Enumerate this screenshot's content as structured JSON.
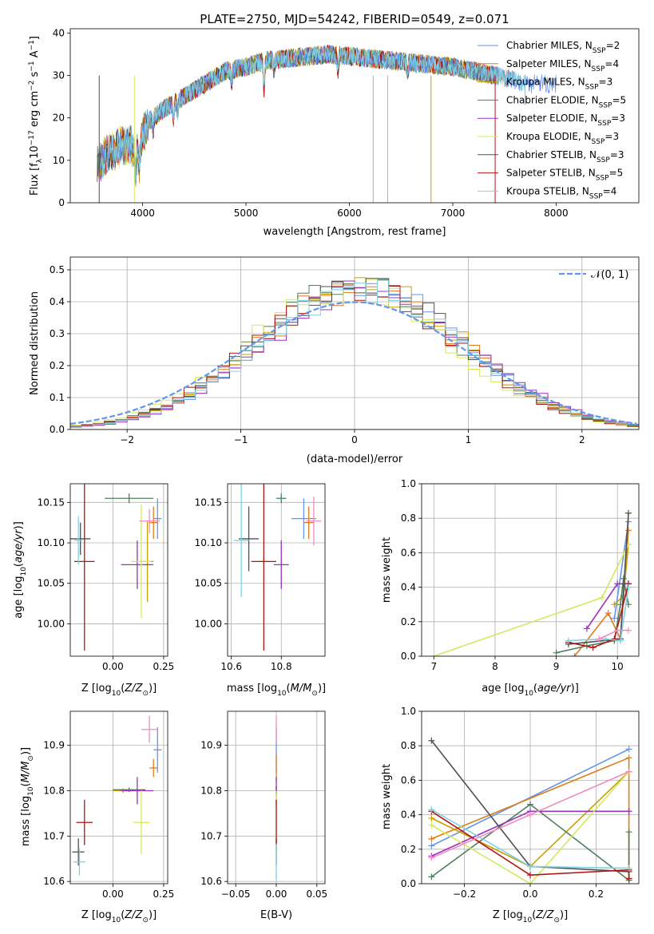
{
  "colors": {
    "chabrier_miles": "#6495ed",
    "salpeter_miles": "#e07b1a",
    "kroupa_miles": "#c8a000",
    "chabrier_elodie": "#4f7f5f",
    "salpeter_elodie": "#9b30c0",
    "kroupa_elodie": "#d4e85c",
    "chabrier_stelib": "#505050",
    "salpeter_stelib": "#b01515",
    "kroupa_stelib": "#80d0e0",
    "pink_extra": "#f08cc0",
    "normal_curve": "#6495ed",
    "grid": "#b0b0b0"
  },
  "legend_labels": [
    "Chabrier MILES, N_SSP=2",
    "Salpeter MILES, N_SSP=4",
    "Kroupa MILES, N_SSP=3",
    "Chabrier ELODIE, N_SSP=5",
    "Salpeter ELODIE, N_SSP=3",
    "Kroupa ELODIE, N_SSP=3",
    "Chabrier STELIB, N_SSP=3",
    "Salpeter STELIB, N_SSP=5",
    "Kroupa STELIB, N_SSP=4"
  ],
  "chart_data": [
    {
      "id": "spectrum",
      "type": "line",
      "title": "PLATE=2750, MJD=54242, FIBERID=0549, z=0.071",
      "xlabel": "wavelength [Angstrom, rest frame]",
      "ylabel": "Flux [f_λ 10^-17 erg cm^-2 s^-1 A^-1]",
      "xlim": [
        3300,
        8800
      ],
      "ylim": [
        0,
        41
      ],
      "xticks": [
        4000,
        5000,
        6000,
        7000,
        8000
      ],
      "yticks": [
        0,
        10,
        20,
        30,
        40
      ],
      "continuum_x": [
        3550,
        3700,
        3850,
        3950,
        4050,
        4200,
        4400,
        4600,
        4800,
        5000,
        5200,
        5400,
        5600,
        5800,
        6000,
        6200,
        6400,
        6600,
        6800,
        7000,
        7200,
        7400,
        7600,
        7700
      ],
      "continuum_y": [
        9,
        12,
        14,
        12,
        19,
        22,
        25,
        28,
        31,
        32,
        33.5,
        34,
        34.5,
        35,
        34.5,
        34,
        33.5,
        33,
        32.5,
        32,
        31,
        30,
        29,
        28
      ]
    },
    {
      "id": "residuals",
      "type": "histogram",
      "xlabel": "(data-model)/error",
      "ylabel": "Normed distribution",
      "xlim": [
        -2.5,
        2.5
      ],
      "ylim": [
        0,
        0.54
      ],
      "xticks": [
        -2,
        -1,
        0,
        1,
        2
      ],
      "yticks": [
        0.0,
        0.1,
        0.2,
        0.3,
        0.4,
        0.5
      ],
      "legend_label": "𝒩(0, 1)"
    },
    {
      "id": "age_vs_Z",
      "type": "scatter",
      "xlabel": "Z [log10(Z/Z⊙)]",
      "ylabel": "age [log10(age/yr)]",
      "xlim": [
        -0.21,
        0.27
      ],
      "ylim": [
        9.96,
        10.173
      ],
      "xticks": [
        0.0,
        0.25
      ],
      "yticks": [
        10.0,
        10.05,
        10.1,
        10.15
      ],
      "points": [
        {
          "x": 0.22,
          "y": 10.13,
          "xerr": 0.02,
          "yerr": 0.025,
          "c": "chabrier_miles"
        },
        {
          "x": 0.2,
          "y": 10.125,
          "xerr": 0.02,
          "yerr": 0.02,
          "c": "salpeter_miles"
        },
        {
          "x": 0.17,
          "y": 10.077,
          "xerr": 0.03,
          "yerr": 0.05,
          "c": "kroupa_miles"
        },
        {
          "x": 0.08,
          "y": 10.155,
          "xerr": 0.12,
          "yerr": 0.006,
          "c": "chabrier_elodie"
        },
        {
          "x": 0.12,
          "y": 10.073,
          "xerr": 0.08,
          "yerr": 0.03,
          "c": "salpeter_elodie"
        },
        {
          "x": 0.14,
          "y": 10.077,
          "xerr": 0.05,
          "yerr": 0.07,
          "c": "kroupa_elodie"
        },
        {
          "x": -0.16,
          "y": 10.105,
          "xerr": 0.05,
          "yerr": 0.02,
          "c": "chabrier_stelib"
        },
        {
          "x": -0.14,
          "y": 10.077,
          "xerr": 0.05,
          "yerr": 0.11,
          "c": "salpeter_stelib"
        },
        {
          "x": -0.17,
          "y": 10.103,
          "xerr": 0.02,
          "yerr": 0.03,
          "c": "kroupa_stelib"
        },
        {
          "x": 0.18,
          "y": 10.127,
          "xerr": 0.05,
          "yerr": 0.015,
          "c": "pink_extra"
        }
      ]
    },
    {
      "id": "age_vs_mass",
      "type": "scatter",
      "xlabel": "mass [log10(M/M⊙)]",
      "ylabel": "",
      "xlim": [
        10.585,
        10.975
      ],
      "ylim": [
        9.96,
        10.173
      ],
      "xticks": [
        10.6,
        10.8
      ],
      "yticks": [
        10.0,
        10.05,
        10.1,
        10.15
      ],
      "points": [
        {
          "x": 10.89,
          "y": 10.13,
          "xerr": 0.05,
          "yerr": 0.025,
          "c": "chabrier_miles"
        },
        {
          "x": 10.91,
          "y": 10.125,
          "xerr": 0.02,
          "yerr": 0.02,
          "c": "salpeter_miles"
        },
        {
          "x": 10.73,
          "y": 10.077,
          "xerr": 0.02,
          "yerr": 0.005,
          "c": "kroupa_miles"
        },
        {
          "x": 10.8,
          "y": 10.155,
          "xerr": 0.02,
          "yerr": 0.006,
          "c": "chabrier_elodie"
        },
        {
          "x": 10.8,
          "y": 10.073,
          "xerr": 0.03,
          "yerr": 0.03,
          "c": "salpeter_elodie"
        },
        {
          "x": 10.73,
          "y": 10.077,
          "xerr": 0.02,
          "yerr": 0.005,
          "c": "kroupa_elodie"
        },
        {
          "x": 10.67,
          "y": 10.105,
          "xerr": 0.04,
          "yerr": 0.04,
          "c": "chabrier_stelib"
        },
        {
          "x": 10.73,
          "y": 10.077,
          "xerr": 0.05,
          "yerr": 0.11,
          "c": "salpeter_stelib"
        },
        {
          "x": 10.64,
          "y": 10.103,
          "xerr": 0.03,
          "yerr": 0.07,
          "c": "kroupa_stelib"
        },
        {
          "x": 10.93,
          "y": 10.127,
          "xerr": 0.03,
          "yerr": 0.03,
          "c": "pink_extra"
        }
      ]
    },
    {
      "id": "mass_weight_vs_age",
      "type": "line",
      "xlabel": "age log10(age/yr)",
      "ylabel": "mass weight",
      "xlim": [
        6.8,
        10.35
      ],
      "ylim": [
        0,
        1.0
      ],
      "xticks": [
        7,
        8,
        9,
        10
      ],
      "yticks": [
        0.0,
        0.2,
        0.4,
        0.6,
        0.8,
        1.0
      ],
      "series": [
        {
          "c": "chabrier_miles",
          "x": [
            9.95,
            10.18
          ],
          "y": [
            0.22,
            0.78
          ]
        },
        {
          "c": "salpeter_miles",
          "x": [
            9.3,
            9.85,
            10.05,
            10.18
          ],
          "y": [
            0.0,
            0.25,
            0.1,
            0.73
          ]
        },
        {
          "c": "kroupa_miles",
          "x": [
            9.95,
            10.1,
            10.18
          ],
          "y": [
            0.3,
            0.35,
            0.65
          ]
        },
        {
          "c": "chabrier_elodie",
          "x": [
            9.0,
            9.5,
            9.95,
            10.05,
            10.1,
            10.18
          ],
          "y": [
            0.02,
            0.06,
            0.09,
            0.3,
            0.45,
            0.3
          ]
        },
        {
          "c": "salpeter_elodie",
          "x": [
            9.5,
            10.0,
            10.18
          ],
          "y": [
            0.16,
            0.42,
            0.42
          ]
        },
        {
          "c": "kroupa_elodie",
          "x": [
            7.0,
            9.75,
            10.18
          ],
          "y": [
            0.0,
            0.34,
            0.65
          ]
        },
        {
          "c": "chabrier_stelib",
          "x": [
            9.2,
            10.05,
            10.18
          ],
          "y": [
            0.07,
            0.1,
            0.83
          ]
        },
        {
          "c": "salpeter_stelib",
          "x": [
            9.2,
            9.6,
            9.95,
            10.18
          ],
          "y": [
            0.08,
            0.05,
            0.1,
            0.42
          ]
        },
        {
          "c": "kroupa_stelib",
          "x": [
            9.2,
            9.8,
            10.05,
            10.18
          ],
          "y": [
            0.09,
            0.1,
            0.09,
            0.4
          ]
        },
        {
          "c": "pink_extra",
          "x": [
            9.7,
            10.0,
            10.18
          ],
          "y": [
            0.1,
            0.15,
            0.15
          ]
        }
      ]
    },
    {
      "id": "mass_vs_Z",
      "type": "scatter",
      "xlabel": "Z [log10(Z/Z⊙)]",
      "ylabel": "mass [log10(M/M⊙)]",
      "xlim": [
        -0.21,
        0.27
      ],
      "ylim": [
        10.595,
        10.975
      ],
      "xticks": [
        0.0,
        0.25
      ],
      "yticks": [
        10.6,
        10.7,
        10.8,
        10.9
      ],
      "points": [
        {
          "x": 0.22,
          "y": 10.89,
          "xerr": 0.02,
          "yerr": 0.05,
          "c": "chabrier_miles"
        },
        {
          "x": 0.2,
          "y": 10.85,
          "xerr": 0.02,
          "yerr": 0.02,
          "c": "salpeter_miles"
        },
        {
          "x": 0.05,
          "y": 10.8,
          "xerr": 0.05,
          "yerr": 0.005,
          "c": "kroupa_miles"
        },
        {
          "x": 0.08,
          "y": 10.802,
          "xerr": 0.08,
          "yerr": 0.005,
          "c": "chabrier_elodie"
        },
        {
          "x": 0.12,
          "y": 10.8,
          "xerr": 0.08,
          "yerr": 0.03,
          "c": "salpeter_elodie"
        },
        {
          "x": 0.14,
          "y": 10.73,
          "xerr": 0.04,
          "yerr": 0.07,
          "c": "kroupa_elodie"
        },
        {
          "x": -0.17,
          "y": 10.665,
          "xerr": 0.03,
          "yerr": 0.03,
          "c": "chabrier_stelib"
        },
        {
          "x": -0.14,
          "y": 10.73,
          "xerr": 0.04,
          "yerr": 0.05,
          "c": "salpeter_stelib"
        },
        {
          "x": -0.165,
          "y": 10.643,
          "xerr": 0.03,
          "yerr": 0.03,
          "c": "kroupa_stelib"
        },
        {
          "x": 0.18,
          "y": 10.935,
          "xerr": 0.04,
          "yerr": 0.03,
          "c": "pink_extra"
        }
      ]
    },
    {
      "id": "mass_vs_ebv",
      "type": "scatter",
      "xlabel": "E(B-V)",
      "ylabel": "",
      "xlim": [
        -0.06,
        0.06
      ],
      "ylim": [
        10.595,
        10.975
      ],
      "xticks": [
        -0.05,
        0.0,
        0.05
      ],
      "yticks": [
        10.6,
        10.7,
        10.8,
        10.9
      ],
      "points": [
        {
          "x": 0.0,
          "y": 10.89,
          "xerr": 0.0,
          "yerr": 0.05,
          "c": "chabrier_miles"
        },
        {
          "x": 0.0,
          "y": 10.85,
          "xerr": 0.0,
          "yerr": 0.03,
          "c": "salpeter_miles"
        },
        {
          "x": 0.0,
          "y": 10.8,
          "xerr": 0.0,
          "yerr": 0.01,
          "c": "kroupa_miles"
        },
        {
          "x": 0.0,
          "y": 10.8,
          "xerr": 0.0,
          "yerr": 0.01,
          "c": "chabrier_elodie"
        },
        {
          "x": 0.0,
          "y": 10.8,
          "xerr": 0.0,
          "yerr": 0.03,
          "c": "salpeter_elodie"
        },
        {
          "x": 0.0,
          "y": 10.73,
          "xerr": 0.0,
          "yerr": 0.07,
          "c": "kroupa_elodie"
        },
        {
          "x": 0.0,
          "y": 10.665,
          "xerr": 0.0,
          "yerr": 0.03,
          "c": "chabrier_stelib"
        },
        {
          "x": 0.0,
          "y": 10.73,
          "xerr": 0.0,
          "yerr": 0.05,
          "c": "salpeter_stelib"
        },
        {
          "x": 0.0,
          "y": 10.643,
          "xerr": 0.0,
          "yerr": 0.04,
          "c": "kroupa_stelib"
        },
        {
          "x": 0.0,
          "y": 10.935,
          "xerr": 0.0,
          "yerr": 0.03,
          "c": "pink_extra"
        }
      ]
    },
    {
      "id": "mass_weight_vs_Z",
      "type": "line",
      "xlabel": "Z [log10(Z/Z⊙)]",
      "ylabel": "mass weight",
      "xlim": [
        -0.33,
        0.33
      ],
      "ylim": [
        0,
        1.0
      ],
      "xticks": [
        -0.2,
        0.0,
        0.2
      ],
      "yticks": [
        0.0,
        0.2,
        0.4,
        0.6,
        0.8,
        1.0
      ],
      "series": [
        {
          "c": "chabrier_miles",
          "x": [
            -0.3,
            0.3
          ],
          "y": [
            0.22,
            0.78
          ]
        },
        {
          "c": "salpeter_miles",
          "x": [
            -0.3,
            0.3,
            0.3
          ],
          "y": [
            0.26,
            0.73,
            0.02
          ]
        },
        {
          "c": "kroupa_miles",
          "x": [
            -0.3,
            0.0,
            0.3
          ],
          "y": [
            0.38,
            0.1,
            0.65
          ]
        },
        {
          "c": "chabrier_elodie",
          "x": [
            -0.3,
            0.0,
            0.3,
            0.3
          ],
          "y": [
            0.04,
            0.46,
            0.02,
            0.3
          ]
        },
        {
          "c": "salpeter_elodie",
          "x": [
            -0.3,
            0.0,
            0.3
          ],
          "y": [
            0.16,
            0.42,
            0.42
          ]
        },
        {
          "c": "kroupa_elodie",
          "x": [
            -0.3,
            0.0,
            0.3
          ],
          "y": [
            0.34,
            0.0,
            0.65
          ]
        },
        {
          "c": "chabrier_stelib",
          "x": [
            -0.3,
            0.0,
            0.3
          ],
          "y": [
            0.83,
            0.1,
            0.07
          ]
        },
        {
          "c": "salpeter_stelib",
          "x": [
            -0.3,
            0.0,
            0.3,
            0.3
          ],
          "y": [
            0.42,
            0.05,
            0.08,
            0.03
          ]
        },
        {
          "c": "kroupa_stelib",
          "x": [
            -0.3,
            0.0,
            0.3
          ],
          "y": [
            0.43,
            0.1,
            0.09
          ]
        },
        {
          "c": "pink_extra",
          "x": [
            -0.3,
            0.0,
            0.3
          ],
          "y": [
            0.15,
            0.4,
            0.65
          ]
        }
      ]
    }
  ]
}
